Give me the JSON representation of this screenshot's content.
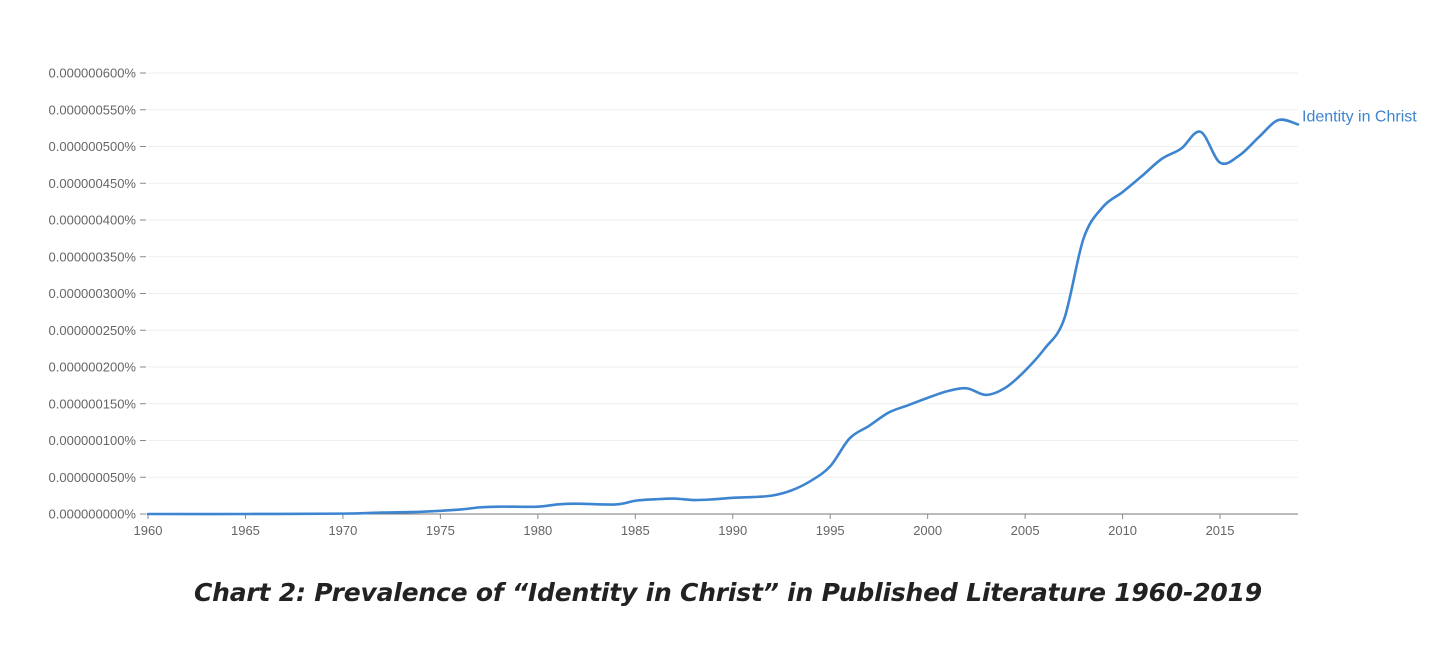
{
  "chart_data": {
    "type": "line",
    "title": "",
    "caption": "Chart 2: Prevalence of “Identity in Christ” in Published Literature 1960-2019",
    "xlabel": "",
    "ylabel": "",
    "xlim": [
      1960,
      2019
    ],
    "ylim": [
      0,
      6e-07
    ],
    "grid": true,
    "x_ticks": [
      1960,
      1965,
      1970,
      1975,
      1980,
      1985,
      1990,
      1995,
      2000,
      2005,
      2010,
      2015
    ],
    "x_tick_labels": [
      "1960",
      "1965",
      "1970",
      "1975",
      "1980",
      "1985",
      "1990",
      "1995",
      "2000",
      "2005",
      "2010",
      "2015"
    ],
    "y_ticks": [
      0,
      5e-08,
      1e-07,
      1.5e-07,
      2e-07,
      2.5e-07,
      3e-07,
      3.5e-07,
      4e-07,
      4.5e-07,
      5e-07,
      5.5e-07,
      6e-07
    ],
    "y_tick_labels": [
      "0.000000000%",
      "0.000000050%",
      "0.000000100%",
      "0.000000150%",
      "0.000000200%",
      "0.000000250%",
      "0.000000300%",
      "0.000000350%",
      "0.000000400%",
      "0.000000450%",
      "0.000000500%",
      "0.000000550%",
      "0.000000600%"
    ],
    "series": [
      {
        "name": "Identity in Christ",
        "color": "#3d85d0",
        "x": [
          1960,
          1965,
          1970,
          1972,
          1974,
          1976,
          1977,
          1978,
          1980,
          1981,
          1982,
          1984,
          1985,
          1986,
          1987,
          1988,
          1989,
          1990,
          1991,
          1992,
          1993,
          1994,
          1995,
          1996,
          1997,
          1998,
          1999,
          2000,
          2001,
          2002,
          2003,
          2004,
          2005,
          2006,
          2007,
          2008,
          2009,
          2010,
          2011,
          2012,
          2013,
          2014,
          2015,
          2016,
          2017,
          2018,
          2019
        ],
        "values": [
          0,
          0,
          5e-10,
          2e-09,
          3e-09,
          6e-09,
          9e-09,
          1e-08,
          1e-08,
          1.3e-08,
          1.4e-08,
          1.3e-08,
          1.8e-08,
          2e-08,
          2.1e-08,
          1.9e-08,
          2e-08,
          2.2e-08,
          2.3e-08,
          2.5e-08,
          3.2e-08,
          4.5e-08,
          6.5e-08,
          1.03e-07,
          1.2e-07,
          1.38e-07,
          1.48e-07,
          1.58e-07,
          1.67e-07,
          1.71e-07,
          1.62e-07,
          1.72e-07,
          1.95e-07,
          2.25e-07,
          2.65e-07,
          3.75e-07,
          4.18e-07,
          4.38e-07,
          4.6e-07,
          4.83e-07,
          4.97e-07,
          5.2e-07,
          4.78e-07,
          4.88e-07,
          5.13e-07,
          5.36e-07,
          5.3e-07
        ]
      }
    ]
  }
}
